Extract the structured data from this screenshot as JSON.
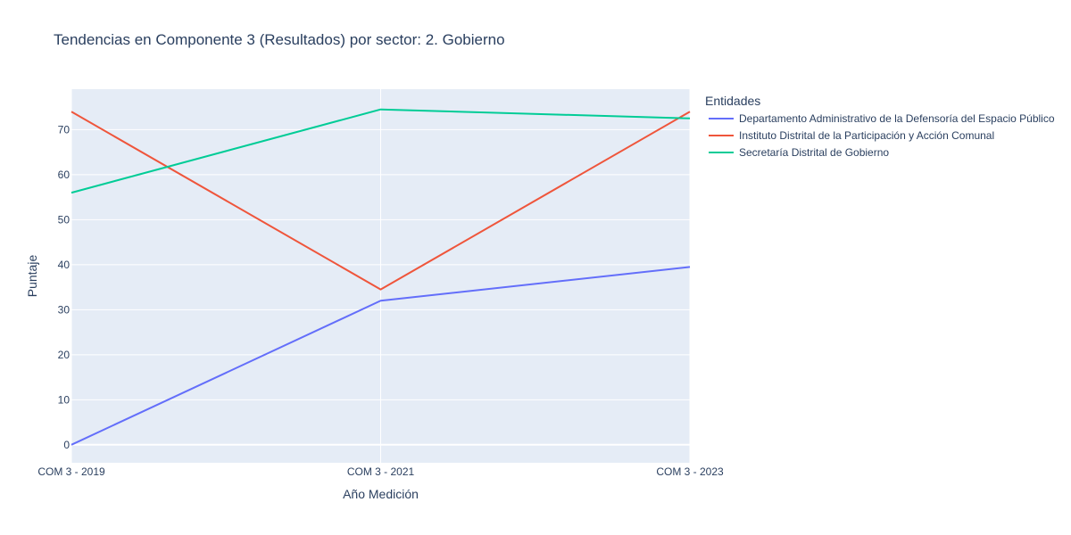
{
  "chart_data": {
    "type": "line",
    "title": "Tendencias en Componente 3 (Resultados) por sector: 2. Gobierno",
    "xlabel": "Año Medición",
    "ylabel": "Puntaje",
    "categories": [
      "COM 3 - 2019",
      "COM 3 - 2021",
      "COM 3 - 2023"
    ],
    "ylim": [
      -4,
      79
    ],
    "yticks": [
      0,
      10,
      20,
      30,
      40,
      50,
      60,
      70
    ],
    "grid": true,
    "legend": {
      "title": "Entidades",
      "placement": "right"
    },
    "series": [
      {
        "name": "Departamento Administrativo de la Defensoría del Espacio Público",
        "color": "#636efa",
        "values": [
          0,
          32,
          39.5
        ]
      },
      {
        "name": "Instituto Distrital de la Participación y Acción Comunal",
        "color": "#ef553b",
        "values": [
          74,
          34.5,
          74
        ]
      },
      {
        "name": "Secretaría Distrital de Gobierno",
        "color": "#00cc96",
        "values": [
          56,
          74.5,
          72.5
        ]
      }
    ]
  }
}
